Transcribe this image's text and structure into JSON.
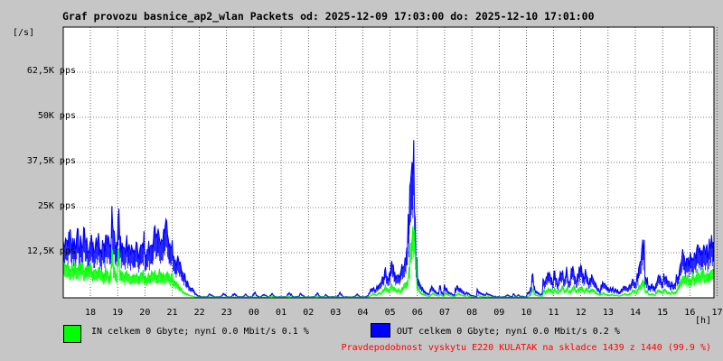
{
  "chart_data": {
    "type": "area",
    "title": "Graf provozu basnice_ap2_wlan Packets od: 2025-12-09 17:03:00 do: 2025-12-10 17:01:00",
    "ylabel": "[/s]",
    "xlabel": "[h]",
    "ylim": [
      0,
      75000
    ],
    "y_ticks": [
      {
        "value": 12500,
        "label": "12,5K pps"
      },
      {
        "value": 25000,
        "label": "25K pps"
      },
      {
        "value": 37500,
        "label": "37,5K pps"
      },
      {
        "value": 50000,
        "label": "50K pps"
      },
      {
        "value": 62500,
        "label": "62,5K pps"
      }
    ],
    "x_ticks": [
      "18",
      "19",
      "20",
      "21",
      "22",
      "23",
      "00",
      "01",
      "02",
      "03",
      "04",
      "05",
      "06",
      "07",
      "08",
      "09",
      "10",
      "11",
      "12",
      "13",
      "14",
      "15",
      "16",
      "17"
    ],
    "grid": true,
    "series": [
      {
        "name": "OUT",
        "color": "#0000ff",
        "values": [
          15000,
          14000,
          15000,
          16000,
          17000,
          14000,
          15000,
          16000,
          15000,
          17000,
          14000,
          16000,
          15000,
          17000,
          16000,
          15000,
          14000,
          16000,
          15000,
          14000,
          13000,
          15000,
          16000,
          14000,
          13000,
          15000,
          14000,
          18000,
          15000,
          17000,
          16000,
          24000,
          20000,
          15000,
          14000,
          22000,
          16000,
          15000,
          14000,
          13000,
          15000,
          14000,
          13000,
          14000,
          13000,
          12000,
          14000,
          13000,
          12000,
          13000,
          14000,
          16000,
          13000,
          12000,
          14000,
          13000,
          15000,
          17000,
          18000,
          15000,
          17000,
          19000,
          16000,
          15000,
          18000,
          19000,
          20000,
          16000,
          14000,
          15000,
          12000,
          11000,
          10000,
          10000,
          9000,
          8000,
          7000,
          6000,
          5000,
          4500,
          3500,
          3000,
          2500,
          2000,
          1200,
          800,
          500,
          400,
          300,
          300,
          300,
          300,
          500,
          1000,
          800,
          600,
          400,
          300,
          300,
          300,
          300,
          700,
          1200,
          800,
          300,
          300,
          300,
          300,
          800,
          1200,
          700,
          300,
          300,
          300,
          300,
          500,
          1000,
          600,
          300,
          300,
          300,
          900,
          1400,
          800,
          400,
          300,
          400,
          700,
          900,
          600,
          400,
          300,
          800,
          1200,
          600,
          300,
          300,
          300,
          300,
          300,
          300,
          300,
          300,
          1000,
          1300,
          900,
          400,
          300,
          300,
          300,
          400,
          1200,
          800,
          500,
          300,
          300,
          300,
          300,
          300,
          300,
          300,
          800,
          1200,
          600,
          300,
          300,
          300,
          900,
          600,
          300,
          300,
          300,
          300,
          300,
          300,
          600,
          1400,
          900,
          500,
          300,
          300,
          300,
          300,
          300,
          300,
          300,
          500,
          1000,
          700,
          400,
          300,
          300,
          300,
          400,
          700,
          1500,
          2500,
          3000,
          2500,
          2000,
          3000,
          4000,
          3500,
          5000,
          6000,
          8000,
          6000,
          5000,
          7000,
          9000,
          8000,
          7000,
          6000,
          6500,
          5500,
          7000,
          8000,
          9000,
          10000,
          12000,
          20000,
          30000,
          38000,
          39000,
          26000,
          10000,
          6000,
          4000,
          3000,
          2500,
          2000,
          1500,
          1200,
          1000,
          2200,
          3000,
          2500,
          2000,
          1500,
          1200,
          3000,
          1500,
          1000,
          3200,
          2800,
          2000,
          1500,
          1200,
          1000,
          800,
          2500,
          3500,
          3000,
          2200,
          1800,
          1500,
          1000,
          1600,
          1200,
          900,
          700,
          600,
          500,
          400,
          2200,
          1600,
          1200,
          1000,
          900,
          800,
          1300,
          1000,
          800,
          600,
          400,
          400,
          300,
          300,
          300,
          300,
          300,
          300,
          500,
          800,
          600,
          400,
          400,
          1000,
          600,
          400,
          800,
          500,
          400,
          400,
          300,
          300,
          1200,
          1500,
          2500,
          6000,
          3000,
          2000,
          1500,
          1200,
          1000,
          1000,
          5000,
          4000,
          5000,
          7000,
          6000,
          5500,
          4000,
          6500,
          5000,
          3500,
          5500,
          7000,
          7500,
          5000,
          6000,
          7500,
          4000,
          5000,
          7000,
          8000,
          6000,
          4500,
          6000,
          7500,
          8000,
          6000,
          5000,
          7000,
          6500,
          4500,
          5000,
          6000,
          5000,
          4000,
          3000,
          2500,
          2000,
          3000,
          4000,
          3500,
          3000,
          2500,
          2000,
          2500,
          3000,
          2000,
          2500,
          2000,
          1500,
          1800,
          2500,
          3000,
          3500,
          3000,
          2500,
          3500,
          4000,
          5000,
          4500,
          4000,
          6000,
          8000,
          10000,
          16000,
          14000,
          6000,
          5000,
          3500,
          3000,
          3500,
          3000,
          2500,
          4000,
          6000,
          5500,
          5000,
          4500,
          6000,
          5500,
          4500,
          4000,
          3500,
          4500,
          4000,
          4000,
          6000,
          7000,
          9000,
          10000,
          12000,
          11000,
          10000,
          12000,
          10000,
          11000,
          13000,
          11000,
          12000,
          14000,
          13000,
          12000,
          13000,
          15000,
          14000,
          13000,
          12000,
          14000,
          16000,
          15000
        ]
      },
      {
        "name": "IN",
        "color": "#00ff00",
        "values": [
          9000,
          8500,
          9000,
          8500,
          8000,
          9000,
          8500,
          9500,
          9000,
          8000,
          8500,
          9000,
          8500,
          8000,
          7500,
          8000,
          8500,
          9000,
          8000,
          7500,
          7000,
          7500,
          8000,
          7500,
          7000,
          6500,
          7000,
          7500,
          7000,
          6500,
          7000,
          13000,
          9000,
          7000,
          6500,
          14000,
          8000,
          7000,
          6500,
          6000,
          7000,
          6500,
          6000,
          6500,
          6000,
          6000,
          6500,
          6000,
          5500,
          6000,
          6500,
          7000,
          6000,
          5500,
          6000,
          6500,
          7000,
          6500,
          7000,
          6500,
          6000,
          7000,
          6500,
          6000,
          6500,
          6000,
          6500,
          6000,
          5500,
          6000,
          5000,
          4500,
          4000,
          3500,
          3000,
          2500,
          2000,
          1500,
          1200,
          1000,
          800,
          600,
          500,
          400,
          300,
          250,
          200,
          200,
          200,
          200,
          200,
          200,
          200,
          300,
          250,
          200,
          200,
          200,
          200,
          200,
          200,
          200,
          200,
          200,
          200,
          200,
          200,
          200,
          200,
          200,
          200,
          200,
          200,
          200,
          200,
          200,
          200,
          200,
          200,
          200,
          200,
          200,
          300,
          200,
          200,
          200,
          200,
          200,
          200,
          200,
          200,
          200,
          300,
          400,
          300,
          200,
          200,
          200,
          200,
          200,
          200,
          200,
          200,
          300,
          400,
          300,
          200,
          200,
          200,
          200,
          200,
          300,
          200,
          200,
          200,
          200,
          200,
          200,
          200,
          200,
          200,
          300,
          400,
          200,
          200,
          200,
          200,
          300,
          200,
          200,
          200,
          200,
          200,
          200,
          200,
          200,
          300,
          200,
          200,
          200,
          200,
          200,
          200,
          200,
          200,
          200,
          200,
          200,
          300,
          200,
          200,
          200,
          200,
          200,
          200,
          300,
          500,
          800,
          1200,
          1000,
          800,
          1200,
          1500,
          1200,
          2000,
          2500,
          3000,
          2500,
          2000,
          3000,
          3500,
          3000,
          2500,
          2200,
          2500,
          2000,
          2500,
          3000,
          3500,
          4000,
          5000,
          9000,
          14000,
          18000,
          20000,
          12000,
          4000,
          2500,
          1500,
          1200,
          1000,
          800,
          600,
          500,
          400,
          800,
          1200,
          1000,
          800,
          600,
          500,
          1000,
          600,
          400,
          1200,
          1000,
          800,
          600,
          500,
          400,
          300,
          800,
          1200,
          1000,
          800,
          600,
          500,
          400,
          600,
          400,
          300,
          200,
          200,
          200,
          200,
          700,
          500,
          400,
          300,
          300,
          200,
          400,
          300,
          200,
          200,
          200,
          200,
          200,
          200,
          200,
          200,
          200,
          200,
          200,
          200,
          200,
          200,
          200,
          300,
          200,
          200,
          200,
          200,
          200,
          200,
          200,
          200,
          400,
          600,
          1000,
          2500,
          1200,
          800,
          600,
          500,
          400,
          400,
          2000,
          1500,
          2000,
          2500,
          2200,
          2000,
          1500,
          2500,
          2000,
          1500,
          2000,
          2500,
          3000,
          2000,
          2200,
          3000,
          1500,
          2000,
          2500,
          3000,
          2500,
          1800,
          2200,
          2800,
          3000,
          2500,
          2000,
          2500,
          2200,
          1800,
          2000,
          2200,
          2000,
          1500,
          1200,
          1000,
          800,
          1200,
          1500,
          1200,
          1000,
          800,
          700,
          800,
          1000,
          700,
          800,
          700,
          500,
          600,
          800,
          1000,
          1200,
          1000,
          900,
          1200,
          1500,
          2000,
          1800,
          1500,
          2200,
          3000,
          3500,
          5000,
          4000,
          2000,
          1800,
          1200,
          1000,
          1200,
          1000,
          800,
          1500,
          2200,
          2000,
          1800,
          1600,
          2200,
          2000,
          1600,
          1500,
          1200,
          1600,
          1500,
          1500,
          2200,
          3000,
          4000,
          5000,
          6000,
          5500,
          5000,
          6000,
          5000,
          5500,
          6500,
          5500,
          6000,
          7000,
          6500,
          6000,
          6500,
          7500,
          7000,
          6500,
          6000,
          7000,
          8000,
          7500
        ]
      }
    ]
  },
  "legend": {
    "in": {
      "label": "IN celkem 0 Gbyte; nyní   0.0 Mbit/s 0.1 %",
      "color": "#00ff00"
    },
    "out": {
      "label": "OUT celkem 0 Gbyte; nyní   0.0 Mbit/s 0.2 %",
      "color": "#0000ff"
    }
  },
  "footer": "Pravdepodobnost vyskytu E220 KULATAK na skladce 1439 z 1440 (99.9 %)"
}
